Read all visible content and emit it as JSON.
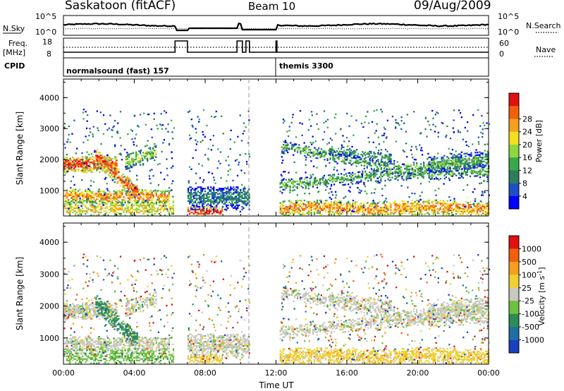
{
  "header": {
    "station": "Saskatoon (fitACF)",
    "beam": "Beam 10",
    "date": "09/Aug/2009"
  },
  "summary_panels": {
    "nsky_label": "N.Sky",
    "nsearch_label": "N.Search",
    "nsky_ticks": [
      "10^5",
      "10^0"
    ],
    "nsearch_ticks": [
      "10^5",
      "10^0"
    ],
    "freq_label_1": "Freq.",
    "freq_label_2": "[MHz]",
    "freq_ticks": [
      "18",
      "8"
    ],
    "nave_label": "Nave",
    "nave_ticks": [
      "60",
      "0"
    ],
    "cpid_label": "CPID",
    "cpid_segments": [
      {
        "name": "normalsound (fast) 157"
      },
      {
        "name": "themis 3300"
      }
    ]
  },
  "chart_data": [
    {
      "type": "heatmap",
      "name": "power",
      "ylabel": "Slant Range [km]",
      "yticks": [
        "1000",
        "2000",
        "3000",
        "4000"
      ],
      "ylim": [
        180,
        4600
      ],
      "xlim": [
        0,
        24
      ],
      "colorbar_label": "Power [dB]",
      "colorbar_ticks": [
        "4",
        "8",
        "12",
        "16",
        "20",
        "24",
        "28"
      ],
      "colors": [
        "#0000ff",
        "#1f4fc4",
        "#2e7d5a",
        "#3aa84a",
        "#8fd640",
        "#f0e020",
        "#f5a020",
        "#f06010",
        "#e01010"
      ]
    },
    {
      "type": "heatmap",
      "name": "velocity",
      "ylabel": "Slant Range [km]",
      "yticks": [
        "1000",
        "2000",
        "3000",
        "4000"
      ],
      "ylim": [
        180,
        4600
      ],
      "xlim": [
        0,
        24
      ],
      "colorbar_label": "Velocity [m s^-1]",
      "colorbar_ticks": [
        "1000",
        "500",
        "100",
        "25",
        "-25",
        "-100",
        "-500",
        "-1000"
      ],
      "colors": [
        "#1a3fbf",
        "#1f6f9f",
        "#2e8b57",
        "#6ec040",
        "#c8c8c0",
        "#f0d030",
        "#f5a020",
        "#f06010",
        "#e01010"
      ],
      "xlabel": "Time UT",
      "xticks": [
        "00:00",
        "04:00",
        "08:00",
        "12:00",
        "16:00",
        "20:00",
        "00:00"
      ]
    }
  ]
}
